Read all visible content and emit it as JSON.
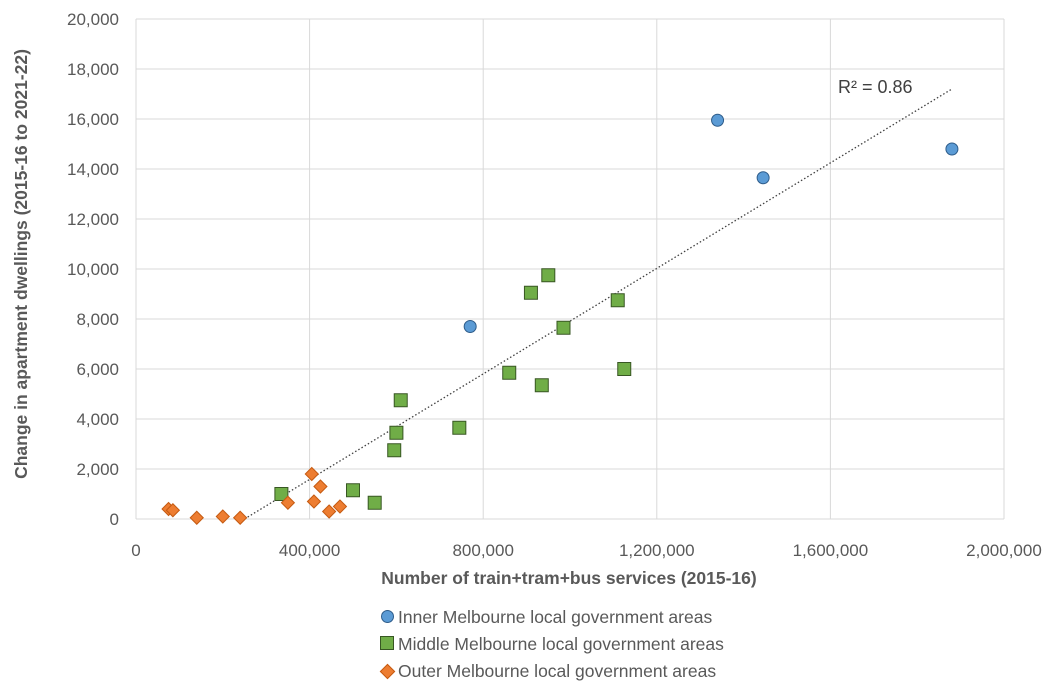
{
  "chart_data": {
    "type": "scatter",
    "title": "",
    "xlabel": "Number of train+tram+bus services (2015-16)",
    "ylabel": "Change in apartment dwellings (2015-16 to 2021-22)",
    "xlim": [
      0,
      2000000
    ],
    "ylim": [
      0,
      20000
    ],
    "x_ticks": [
      0,
      400000,
      800000,
      1200000,
      1600000,
      2000000
    ],
    "x_tick_labels": [
      "0",
      "400,000",
      "800,000",
      "1,200,000",
      "1,600,000",
      "2,000,000"
    ],
    "y_ticks": [
      0,
      2000,
      4000,
      6000,
      8000,
      10000,
      12000,
      14000,
      16000,
      18000,
      20000
    ],
    "y_tick_labels": [
      "0",
      "2,000",
      "4,000",
      "6,000",
      "8,000",
      "10,000",
      "12,000",
      "14,000",
      "16,000",
      "18,000",
      "20,000"
    ],
    "grid": true,
    "legend_position": "bottom",
    "trendline": {
      "label": "R² = 0.86",
      "style": "dotted",
      "from": [
        250000,
        0
      ],
      "to": [
        1880000,
        17200
      ]
    },
    "series": [
      {
        "name": "Inner Melbourne local government areas",
        "marker": "circle",
        "color": "#5b9bd5",
        "points": [
          [
            770000,
            7700
          ],
          [
            1340000,
            15950
          ],
          [
            1445000,
            13650
          ],
          [
            1880000,
            14800
          ]
        ]
      },
      {
        "name": "Middle Melbourne local government areas",
        "marker": "square",
        "color": "#70ad47",
        "points": [
          [
            335000,
            1000
          ],
          [
            500000,
            1150
          ],
          [
            550000,
            650
          ],
          [
            595000,
            2750
          ],
          [
            600000,
            3450
          ],
          [
            610000,
            4750
          ],
          [
            745000,
            3650
          ],
          [
            860000,
            5850
          ],
          [
            910000,
            9050
          ],
          [
            935000,
            5350
          ],
          [
            950000,
            9750
          ],
          [
            985000,
            7650
          ],
          [
            1110000,
            8750
          ],
          [
            1125000,
            6000
          ]
        ]
      },
      {
        "name": "Outer Melbourne local government areas",
        "marker": "diamond",
        "color": "#ed7d31",
        "points": [
          [
            75000,
            400
          ],
          [
            85000,
            350
          ],
          [
            140000,
            50
          ],
          [
            200000,
            100
          ],
          [
            240000,
            50
          ],
          [
            350000,
            650
          ],
          [
            405000,
            1800
          ],
          [
            410000,
            700
          ],
          [
            425000,
            1300
          ],
          [
            445000,
            300
          ],
          [
            470000,
            500
          ]
        ]
      }
    ]
  }
}
